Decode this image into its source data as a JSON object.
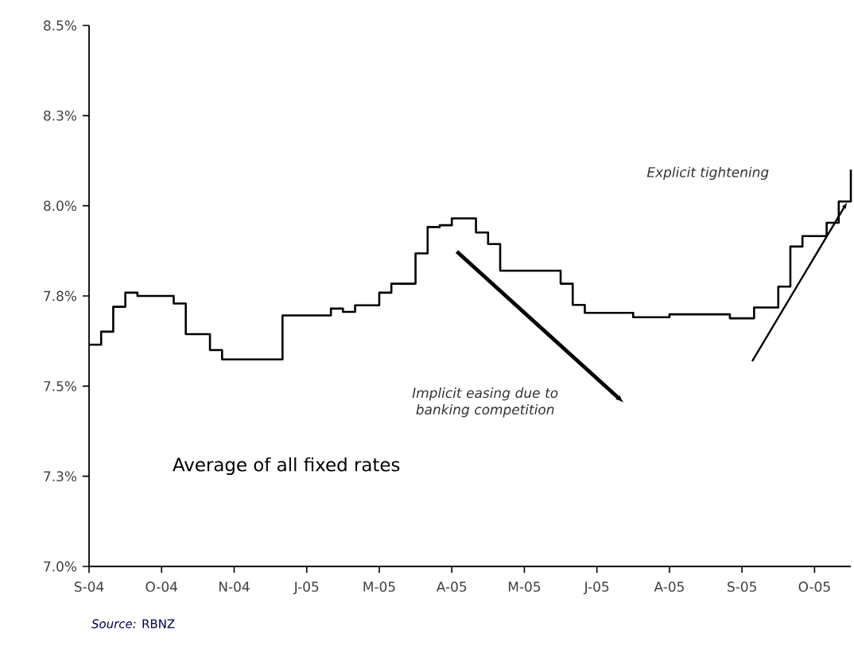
{
  "chart_data": {
    "type": "step",
    "categories": [
      "S-04",
      null,
      null,
      null,
      null,
      null,
      "O-04",
      null,
      null,
      null,
      null,
      null,
      "N-04",
      null,
      null,
      null,
      null,
      null,
      "J-05",
      null,
      null,
      null,
      null,
      null,
      "M-05",
      null,
      null,
      null,
      null,
      null,
      "A-05",
      null,
      null,
      null,
      null,
      null,
      "M-05",
      null,
      null,
      null,
      null,
      null,
      "J-05",
      null,
      null,
      null,
      null,
      null,
      "A-05",
      null,
      null,
      null,
      null,
      null,
      "S-05",
      null,
      null,
      null,
      null,
      null,
      "O-05",
      null,
      null,
      null
    ],
    "series": [
      {
        "name": "Average of all fixed rates",
        "color": "#000000",
        "values": [
          7.615,
          7.651,
          7.72,
          7.759,
          7.75,
          7.75,
          7.75,
          7.729,
          7.644,
          7.644,
          7.6,
          7.574,
          7.574,
          7.574,
          7.574,
          7.574,
          7.696,
          7.696,
          7.696,
          7.696,
          7.715,
          7.706,
          7.724,
          7.724,
          7.759,
          7.784,
          7.784,
          7.868,
          7.941,
          7.946,
          7.965,
          7.965,
          7.926,
          7.894,
          7.82,
          7.82,
          7.82,
          7.82,
          7.82,
          7.784,
          7.725,
          7.703,
          7.703,
          7.703,
          7.703,
          7.691,
          7.691,
          7.691,
          7.699,
          7.699,
          7.699,
          7.699,
          7.699,
          7.688,
          7.688,
          7.718,
          7.718,
          7.776,
          7.887,
          7.916,
          7.916,
          7.953,
          8.012,
          8.1
        ]
      }
    ],
    "ylim": [
      7.0,
      8.5
    ],
    "yticks": [
      {
        "value": 7.0,
        "label": "7.0%"
      },
      {
        "value": 7.25,
        "label": "7.3%"
      },
      {
        "value": 7.5,
        "label": "7.5%"
      },
      {
        "value": 7.75,
        "label": "7.8%"
      },
      {
        "value": 8.0,
        "label": "8.0%"
      },
      {
        "value": 8.25,
        "label": "8.3%"
      },
      {
        "value": 8.5,
        "label": "8.5%"
      }
    ],
    "annotations": [
      "Implicit easing due to banking competition",
      "Explicit tightening",
      "*Source:* RBNZ"
    ],
    "grid": false,
    "legend": false,
    "marker": "none",
    "line_style": "solid"
  }
}
